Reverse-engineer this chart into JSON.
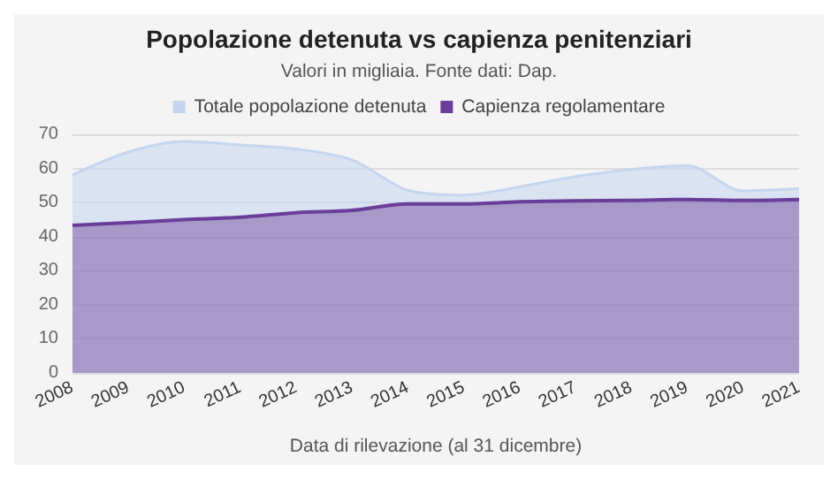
{
  "chart_data": {
    "type": "area",
    "title": "Popolazione detenuta vs capienza penitenziari",
    "subtitle": "Valori in migliaia. Fonte dati: Dap.",
    "xlabel": "Data di rilevazione (al 31 dicembre)",
    "categories": [
      "2008",
      "2009",
      "2010",
      "2011",
      "2012",
      "2013",
      "2014",
      "2015",
      "2016",
      "2017",
      "2018",
      "2019",
      "2020",
      "2021"
    ],
    "series": [
      {
        "name": "Totale popolazione detenuta",
        "color": "#c5d5ef",
        "values": [
          58.1,
          64.8,
          67.9,
          66.9,
          65.7,
          62.5,
          53.6,
          52.2,
          54.6,
          57.6,
          59.7,
          60.8,
          53.4,
          54.1
        ]
      },
      {
        "name": "Capienza regolamentare",
        "color": "#6a3d9a",
        "values": [
          43.3,
          44.1,
          45.0,
          45.7,
          47.0,
          47.7,
          49.6,
          49.6,
          50.2,
          50.5,
          50.6,
          50.9,
          50.6,
          50.9
        ]
      }
    ],
    "ylim": [
      0,
      70
    ],
    "yticks": [
      0,
      10,
      20,
      30,
      40,
      50,
      60,
      70
    ],
    "grid": "y",
    "legend": "top",
    "marker": "none"
  }
}
